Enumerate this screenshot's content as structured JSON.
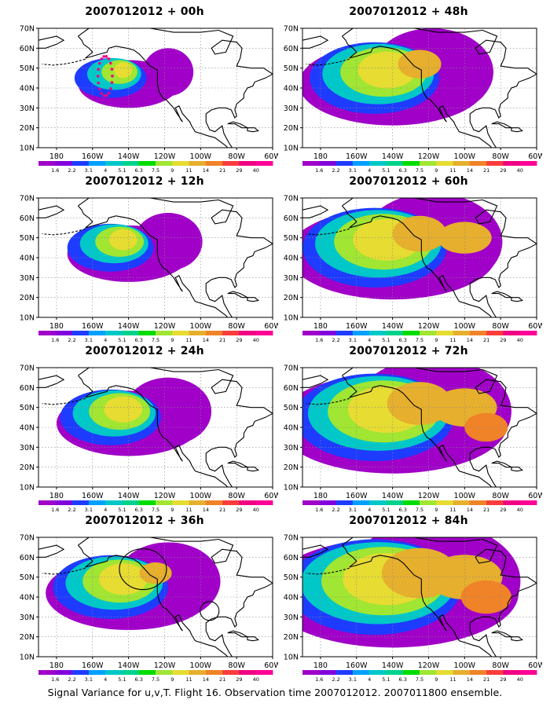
{
  "panels": [
    {
      "title": "2007012012 + 00h",
      "lead": "00h"
    },
    {
      "title": "2007012012 + 48h",
      "lead": "48h"
    },
    {
      "title": "2007012012 + 12h",
      "lead": "12h"
    },
    {
      "title": "2007012012 + 60h",
      "lead": "60h"
    },
    {
      "title": "2007012012 + 24h",
      "lead": "24h"
    },
    {
      "title": "2007012012 + 72h",
      "lead": "72h"
    },
    {
      "title": "2007012012 + 36h",
      "lead": "36h"
    },
    {
      "title": "2007012012 + 84h",
      "lead": "84h"
    }
  ],
  "axes": {
    "lat_labels": [
      "10N",
      "20N",
      "30N",
      "40N",
      "50N",
      "60N",
      "70N"
    ],
    "lon_labels": [
      "180",
      "160W",
      "140W",
      "120W",
      "100W",
      "80W",
      "60W"
    ]
  },
  "colorbar": {
    "labels": [
      "1.6",
      "2.2",
      "3.1",
      "4",
      "5.1",
      "6.3",
      "7.5",
      "9",
      "11",
      "14",
      "21",
      "29",
      "40"
    ],
    "colors": [
      "#a000c8",
      "#8200dc",
      "#1e3cff",
      "#00a0ff",
      "#00c8c8",
      "#00d28c",
      "#00dc00",
      "#a0e632",
      "#e6dc32",
      "#e6af2d",
      "#f08228",
      "#fa3c3c",
      "#f00082",
      "#ff0096"
    ]
  },
  "caption": "Signal Variance for u,v,T. Flight 16. Observation time 2007012012. 2007011800 ensemble."
}
